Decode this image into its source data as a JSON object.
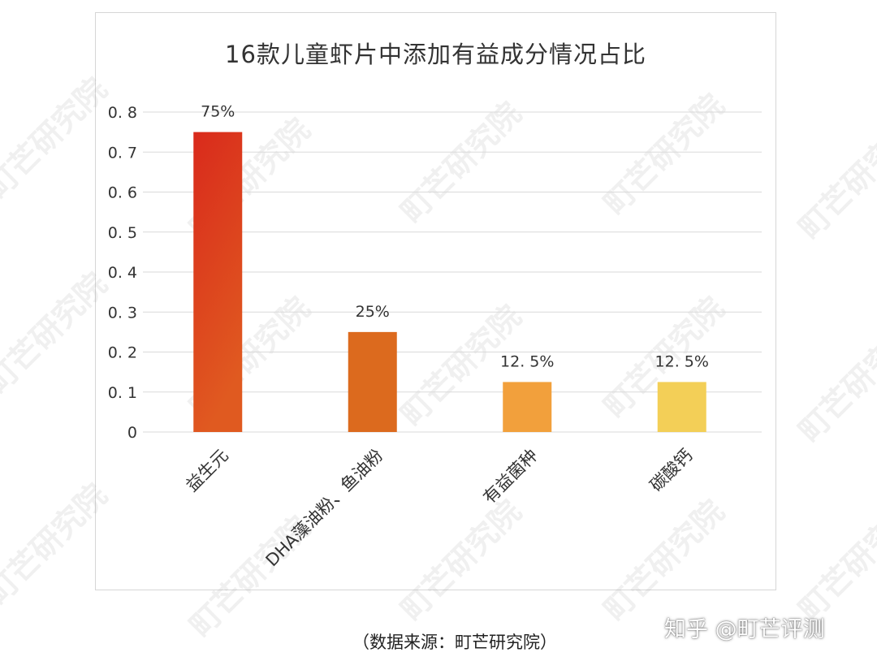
{
  "watermark_text": "町芒研究院",
  "source_note": "（数据来源：町芒研究院）",
  "brand_mark": "知乎 @町芒评测",
  "colors": {
    "bar1_top": "#d92a1c",
    "bar1_bottom": "#e05a20",
    "bar2": "#dc6a1e",
    "bar3": "#f2a03c",
    "bar4": "#f3cf57",
    "grid": "#d9d9d9",
    "text": "#333333"
  },
  "chart_data": {
    "type": "bar",
    "title": "16款儿童虾片中添加有益成分情况占比",
    "categories": [
      "益生元",
      "DHA藻油粉、鱼油粉",
      "有益菌种",
      "碳酸钙"
    ],
    "values": [
      0.75,
      0.25,
      0.125,
      0.125
    ],
    "data_labels": [
      "75%",
      "25%",
      "12. 5%",
      "12. 5%"
    ],
    "ylim": [
      0,
      0.8
    ],
    "yticks": [
      "0",
      "0. 1",
      "0. 2",
      "0. 3",
      "0. 4",
      "0. 5",
      "0. 6",
      "0. 7",
      "0. 8"
    ],
    "grid": true,
    "legend": "none"
  }
}
